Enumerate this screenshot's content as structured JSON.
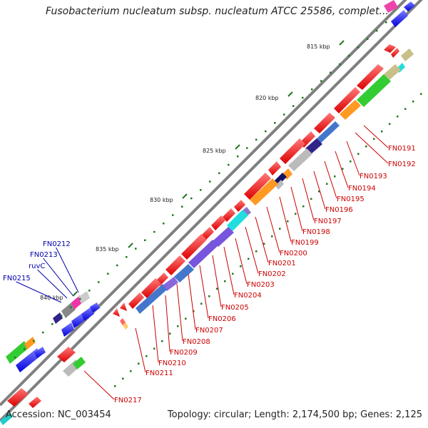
{
  "title": "Fusobacterium nucleatum subsp. nucleatum ATCC 25586, complet...",
  "footer": {
    "accession": "Accession: NC_003454",
    "summary": "Topology: circular; Length: 2,174,500 bp; Genes: 2,125"
  },
  "scale_ticks": [
    "815 kbp",
    "820 kbp",
    "825 kbp",
    "830 kbp",
    "835 kbp",
    "840 kbp"
  ],
  "right_gene_labels": [
    "FN0191",
    "FN0192",
    "FN0193",
    "FN0194",
    "FN0195",
    "FN0196",
    "FN0197",
    "FN0198",
    "FN0199",
    "FN0200",
    "FN0201",
    "FN0202",
    "FN0203",
    "FN0204",
    "FN0205",
    "FN0206",
    "FN0207",
    "FN0208",
    "FN0209",
    "FN0210",
    "FN0211",
    "FN0217"
  ],
  "left_gene_labels": [
    "FN0212",
    "FN0213",
    "ruvC",
    "FN0215"
  ],
  "colors": {
    "forward_gene": "#ee1111",
    "reverse_gene": "#1111ee",
    "right_label": "#cc0000",
    "left_label": "#0000aa",
    "backbone": "#808080",
    "tick": "#227722"
  }
}
